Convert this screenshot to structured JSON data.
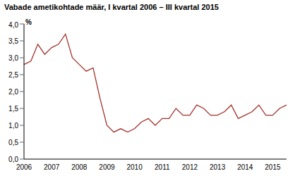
{
  "chart_data": {
    "type": "line",
    "title": "Vabade ametikohtade määr, I kvartal 2006 – III kvartal 2015",
    "y_label": "%",
    "categories": [
      "2006",
      null,
      null,
      null,
      "2007",
      null,
      null,
      null,
      "2008",
      null,
      null,
      null,
      "2009",
      null,
      null,
      null,
      "2010",
      null,
      null,
      null,
      "2011",
      null,
      null,
      null,
      "2012",
      null,
      null,
      null,
      "2013",
      null,
      null,
      null,
      "2014",
      null,
      null,
      null,
      "2015",
      null,
      null
    ],
    "values": [
      2.8,
      2.9,
      3.4,
      3.1,
      3.3,
      3.4,
      3.7,
      3.0,
      2.8,
      2.6,
      2.7,
      1.8,
      1.0,
      0.8,
      0.9,
      0.8,
      0.9,
      1.1,
      1.2,
      1.0,
      1.2,
      1.2,
      1.5,
      1.3,
      1.3,
      1.6,
      1.5,
      1.3,
      1.3,
      1.4,
      1.6,
      1.2,
      1.3,
      1.4,
      1.6,
      1.3,
      1.3,
      1.5,
      1.6
    ],
    "color": "#a3302a",
    "ylim": [
      0,
      4
    ],
    "yticks": [
      {
        "value": 0,
        "label": "0,0"
      },
      {
        "value": 0.5,
        "label": "0,5"
      },
      {
        "value": 1,
        "label": "1,0"
      },
      {
        "value": 1.5,
        "label": "1,5"
      },
      {
        "value": 2,
        "label": "2,0"
      },
      {
        "value": 2.5,
        "label": "2,5"
      },
      {
        "value": 3,
        "label": "3,0"
      },
      {
        "value": 3.5,
        "label": "3,5"
      },
      {
        "value": 4,
        "label": "4,0"
      }
    ],
    "grid": false
  }
}
